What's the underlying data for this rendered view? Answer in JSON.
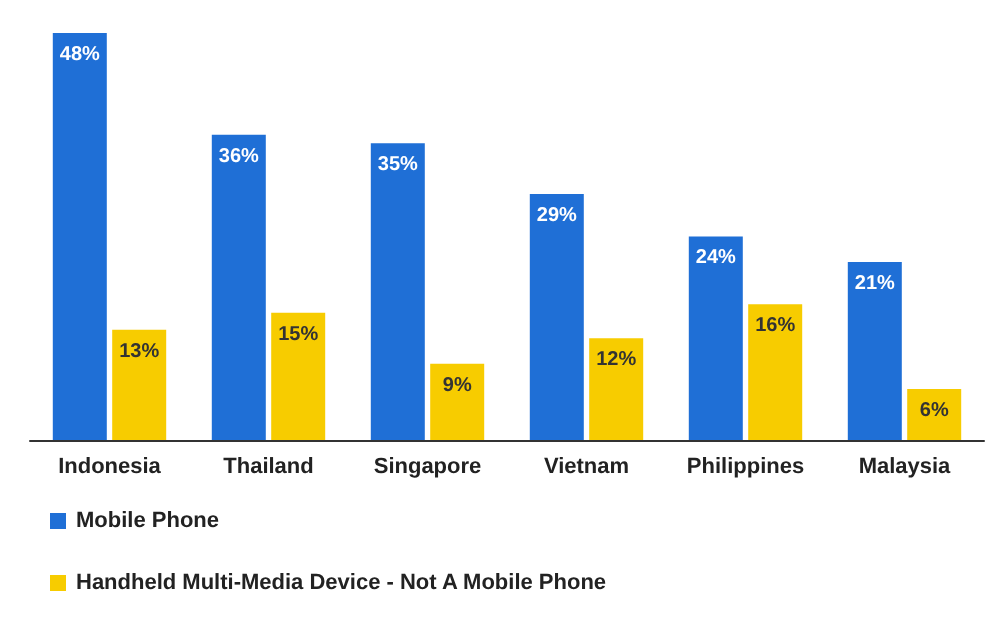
{
  "chart_data": {
    "type": "bar",
    "categories": [
      "Indonesia",
      "Thailand",
      "Singapore",
      "Vietnam",
      "Philippines",
      "Malaysia"
    ],
    "series": [
      {
        "name": "Mobile Phone",
        "color": "#1f6fd6",
        "values": [
          48,
          36,
          35,
          29,
          24,
          21
        ],
        "value_labels": [
          "48%",
          "36%",
          "35%",
          "29%",
          "24%",
          "21%"
        ]
      },
      {
        "name": "Handheld Multi-Media Device - Not A Mobile Phone",
        "color": "#f7cc00",
        "values": [
          13,
          15,
          9,
          12,
          16,
          6
        ],
        "value_labels": [
          "13%",
          "15%",
          "9%",
          "12%",
          "16%",
          "6%"
        ]
      }
    ],
    "legend": "bottom left",
    "grid": false
  }
}
